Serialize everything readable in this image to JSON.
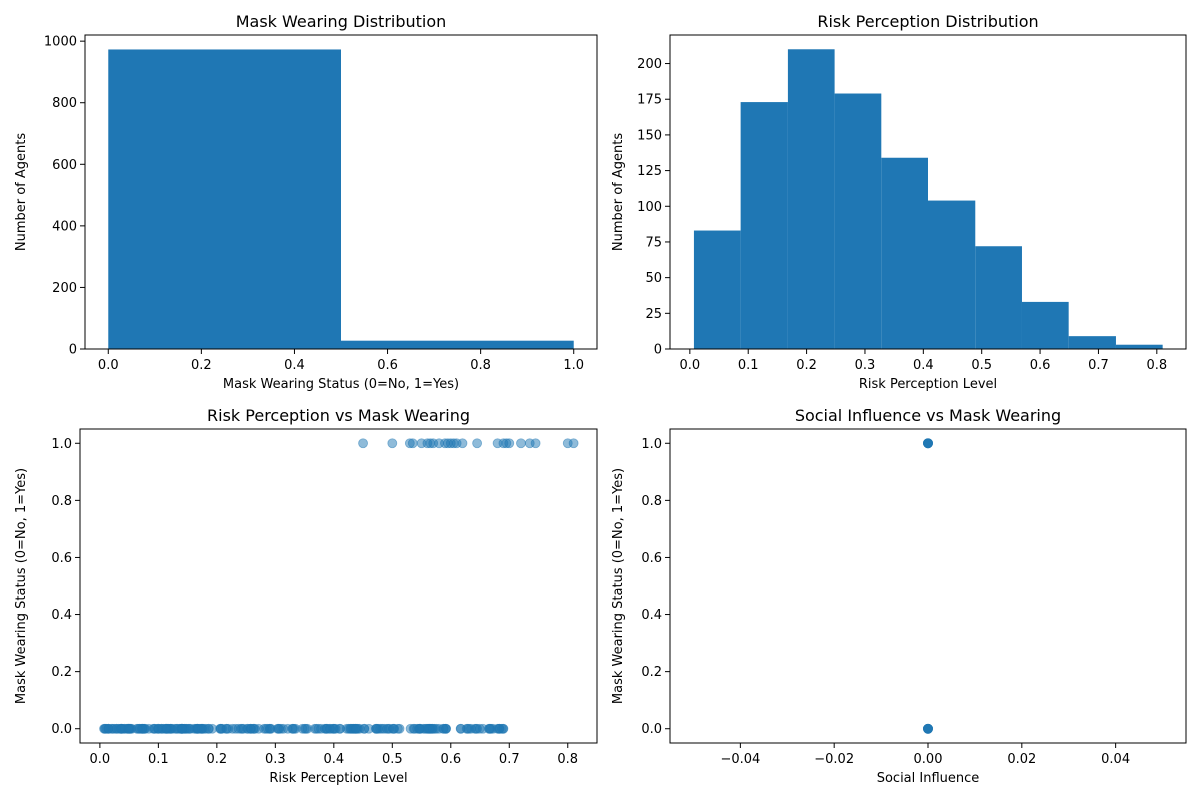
{
  "colors": {
    "bar": "#1f77b4",
    "point": "#1f77b4"
  },
  "chart_data": [
    {
      "type": "bar",
      "title": "Mask Wearing Distribution",
      "xlabel": "Mask Wearing Status (0=No, 1=Yes)",
      "ylabel": "Number of Agents",
      "xlim": [
        -0.05,
        1.05
      ],
      "ylim": [
        0,
        1020
      ],
      "xticks": [
        0.0,
        0.2,
        0.4,
        0.6,
        0.8,
        1.0
      ],
      "xtick_labels": [
        "0.0",
        "0.2",
        "0.4",
        "0.6",
        "0.8",
        "1.0"
      ],
      "yticks": [
        0,
        200,
        400,
        600,
        800,
        1000
      ],
      "ytick_labels": [
        "0",
        "200",
        "400",
        "600",
        "800",
        "1000"
      ],
      "bins": [
        [
          0.0,
          0.5,
          973
        ],
        [
          0.5,
          1.0,
          27
        ]
      ],
      "grid": false
    },
    {
      "type": "bar",
      "title": "Risk Perception Distribution",
      "xlabel": "Risk Perception Level",
      "ylabel": "Number of Agents",
      "xlim": [
        -0.034,
        0.85
      ],
      "ylim": [
        0,
        220
      ],
      "xticks": [
        0.0,
        0.1,
        0.2,
        0.3,
        0.4,
        0.5,
        0.6,
        0.7,
        0.8
      ],
      "xtick_labels": [
        "0.0",
        "0.1",
        "0.2",
        "0.3",
        "0.4",
        "0.5",
        "0.6",
        "0.7",
        "0.8"
      ],
      "yticks": [
        0,
        25,
        50,
        75,
        100,
        125,
        150,
        175,
        200
      ],
      "ytick_labels": [
        "0",
        "25",
        "50",
        "75",
        "100",
        "125",
        "150",
        "175",
        "200"
      ],
      "bins": [
        [
          0.007,
          0.087,
          83
        ],
        [
          0.087,
          0.168,
          173
        ],
        [
          0.168,
          0.248,
          210
        ],
        [
          0.248,
          0.328,
          179
        ],
        [
          0.328,
          0.408,
          134
        ],
        [
          0.408,
          0.489,
          104
        ],
        [
          0.489,
          0.569,
          72
        ],
        [
          0.569,
          0.649,
          33
        ],
        [
          0.649,
          0.73,
          9
        ],
        [
          0.73,
          0.81,
          3
        ]
      ],
      "grid": false
    },
    {
      "type": "scatter",
      "title": "Risk Perception vs Mask Wearing",
      "xlabel": "Risk Perception Level",
      "ylabel": "Mask Wearing Status (0=No, 1=Yes)",
      "xlim": [
        -0.034,
        0.85
      ],
      "ylim": [
        -0.05,
        1.05
      ],
      "xticks": [
        0.0,
        0.1,
        0.2,
        0.3,
        0.4,
        0.5,
        0.6,
        0.7,
        0.8
      ],
      "xtick_labels": [
        "0.0",
        "0.1",
        "0.2",
        "0.3",
        "0.4",
        "0.5",
        "0.6",
        "0.7",
        "0.8"
      ],
      "yticks": [
        0.0,
        0.2,
        0.4,
        0.6,
        0.8,
        1.0
      ],
      "ytick_labels": [
        "0.0",
        "0.2",
        "0.4",
        "0.6",
        "0.8",
        "1.0"
      ],
      "points_y1_x": [
        0.45,
        0.5,
        0.53,
        0.535,
        0.55,
        0.56,
        0.565,
        0.57,
        0.58,
        0.59,
        0.595,
        0.6,
        0.605,
        0.61,
        0.62,
        0.645,
        0.68,
        0.69,
        0.695,
        0.7,
        0.72,
        0.735,
        0.745,
        0.8,
        0.81
      ],
      "points_y0_x_range": [
        0.007,
        0.69
      ],
      "points_y0_x_extra": [
        0.68,
        0.69
      ],
      "grid": false
    },
    {
      "type": "scatter",
      "title": "Social Influence vs Mask Wearing",
      "xlabel": "Social Influence",
      "ylabel": "Mask Wearing Status (0=No, 1=Yes)",
      "xlim": [
        -0.055,
        0.055
      ],
      "ylim": [
        -0.05,
        1.05
      ],
      "xticks": [
        -0.04,
        -0.02,
        0.0,
        0.02,
        0.04
      ],
      "xtick_labels": [
        "−0.04",
        "−0.02",
        "0.00",
        "0.02",
        "0.04"
      ],
      "yticks": [
        0.0,
        0.2,
        0.4,
        0.6,
        0.8,
        1.0
      ],
      "ytick_labels": [
        "0.0",
        "0.2",
        "0.4",
        "0.6",
        "0.8",
        "1.0"
      ],
      "points": [
        [
          0.0,
          0.0
        ],
        [
          0.0,
          1.0
        ]
      ],
      "grid": false
    }
  ]
}
